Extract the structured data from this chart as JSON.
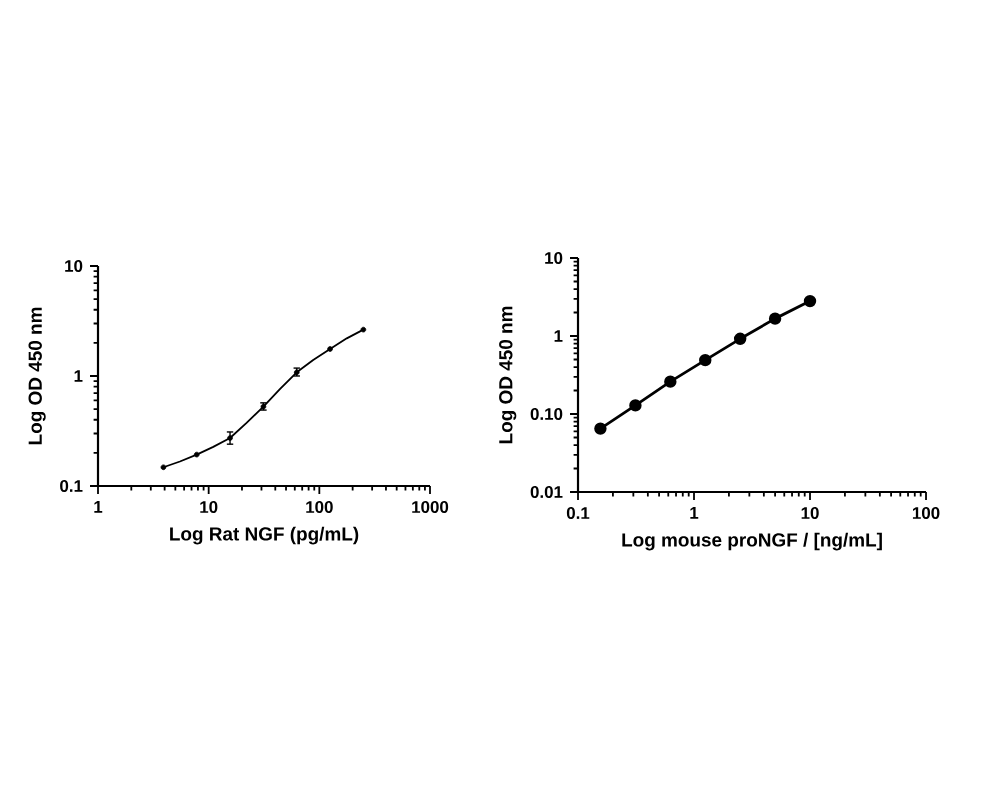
{
  "chart_data": [
    {
      "type": "scatter",
      "xlabel": "Log Rat NGF (pg/mL)",
      "ylabel": "Log OD 450 nm",
      "log": "xy",
      "xlim": [
        1,
        1000
      ],
      "ylim": [
        0.1,
        10
      ],
      "xticks": [
        1,
        10,
        100,
        1000
      ],
      "yticks": [
        0.1,
        1,
        10
      ],
      "series": [
        {
          "color": "#000000",
          "marker": "circle",
          "x": [
            3.9,
            7.8,
            15.6,
            31.25,
            62.5,
            125,
            250
          ],
          "values": [
            0.148,
            0.193,
            0.273,
            0.527,
            1.08,
            1.76,
            2.64
          ],
          "errors": [
            null,
            null,
            [
              0.24,
              0.31
            ],
            [
              0.49,
              0.57
            ],
            [
              1.0,
              1.18
            ],
            null,
            null
          ]
        },
        {
          "type": "line",
          "color": "#000000",
          "line_style": "solid",
          "x": [
            3.9,
            5.5,
            7.8,
            11,
            15.6,
            22,
            31.25,
            44,
            62.5,
            88,
            125,
            177,
            250
          ],
          "values": [
            0.148,
            0.167,
            0.193,
            0.227,
            0.273,
            0.375,
            0.527,
            0.76,
            1.08,
            1.4,
            1.76,
            2.2,
            2.64
          ]
        }
      ]
    },
    {
      "type": "line",
      "xlabel": "Log mouse proNGF / [ng/mL]",
      "ylabel": "Log OD 450 nm",
      "log": "xy",
      "xlim": [
        0.1,
        100
      ],
      "ylim": [
        0.01,
        10
      ],
      "xticks": [
        0.1,
        1,
        10,
        100
      ],
      "yticks": [
        0.01,
        {
          "value": 0.1,
          "label": "0.10"
        },
        1,
        10
      ],
      "series": [
        {
          "color": "#000000",
          "marker": "circle",
          "line_style": "solid",
          "x": [
            0.156,
            0.3125,
            0.625,
            1.25,
            2.5,
            5,
            10
          ],
          "values": [
            0.065,
            0.129,
            0.26,
            0.49,
            0.92,
            1.67,
            2.8
          ]
        }
      ]
    }
  ]
}
